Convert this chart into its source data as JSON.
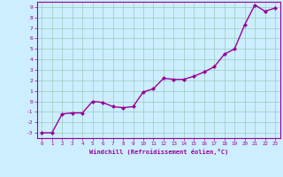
{
  "x": [
    0,
    1,
    2,
    3,
    4,
    5,
    6,
    7,
    8,
    9,
    10,
    11,
    12,
    13,
    14,
    15,
    16,
    17,
    18,
    19,
    20,
    21,
    22,
    23
  ],
  "y": [
    -3,
    -3,
    -1.2,
    -1.1,
    -1.1,
    0.0,
    -0.1,
    -0.5,
    -0.6,
    -0.5,
    0.9,
    1.2,
    2.2,
    2.1,
    2.1,
    2.4,
    2.8,
    3.3,
    4.5,
    5.0,
    7.3,
    9.2,
    8.6,
    8.9
  ],
  "line_color": "#990099",
  "marker": "D",
  "markersize": 2,
  "linewidth": 1.0,
  "xlabel": "Windchill (Refroidissement éolien,°C)",
  "xlim": [
    -0.5,
    23.5
  ],
  "ylim": [
    -3.5,
    9.5
  ],
  "yticks": [
    -3,
    -2,
    -1,
    0,
    1,
    2,
    3,
    4,
    5,
    6,
    7,
    8,
    9
  ],
  "xticks": [
    0,
    1,
    2,
    3,
    4,
    5,
    6,
    7,
    8,
    9,
    10,
    11,
    12,
    13,
    14,
    15,
    16,
    17,
    18,
    19,
    20,
    21,
    22,
    23
  ],
  "background_color": "#cceeff",
  "grid_color": "#99ccbb",
  "tick_color": "#990099",
  "label_color": "#990099",
  "spine_color": "#990099"
}
